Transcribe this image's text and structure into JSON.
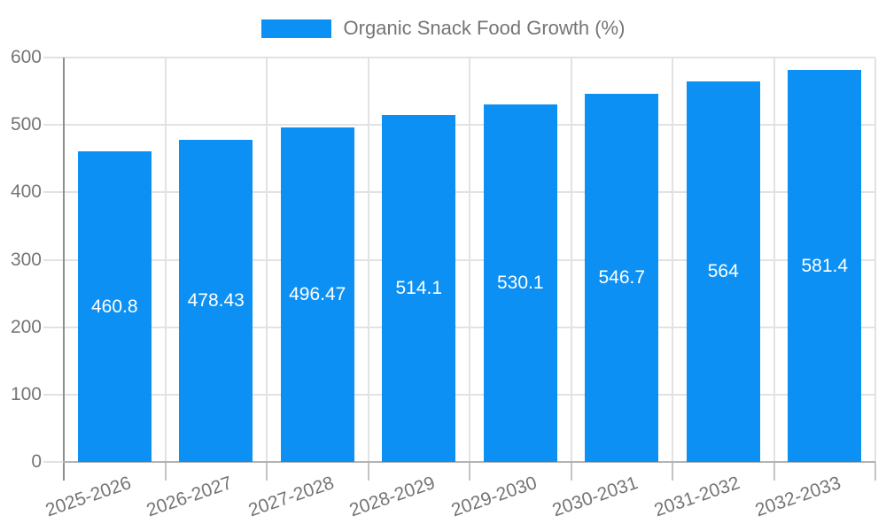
{
  "legend": {
    "label": "Organic Snack Food Growth (%)"
  },
  "chart_data": {
    "type": "bar",
    "title": "Organic Snack Food Growth (%)",
    "categories": [
      "2025-2026",
      "2026-2027",
      "2027-2028",
      "2028-2029",
      "2029-2030",
      "2030-2031",
      "2031-2032",
      "2032-2033"
    ],
    "values": [
      460.8,
      478.43,
      496.47,
      514.1,
      530.1,
      546.7,
      564,
      581.4
    ],
    "xlabel": "",
    "ylabel": "",
    "ylim": [
      0,
      600
    ],
    "yticks": [
      0,
      100,
      200,
      300,
      400,
      500,
      600
    ],
    "grid": true,
    "legend_position": "top",
    "value_labels": "inside-center",
    "colors": {
      "bar": "#0D90F3",
      "grid": "#e2e2e2",
      "axis_left": "#8e8e8e",
      "axis_bottom": "#b3b3b3",
      "boundary_tick": "#c4c4c4",
      "text": "#757575",
      "bar_label": "#ffffff"
    }
  }
}
